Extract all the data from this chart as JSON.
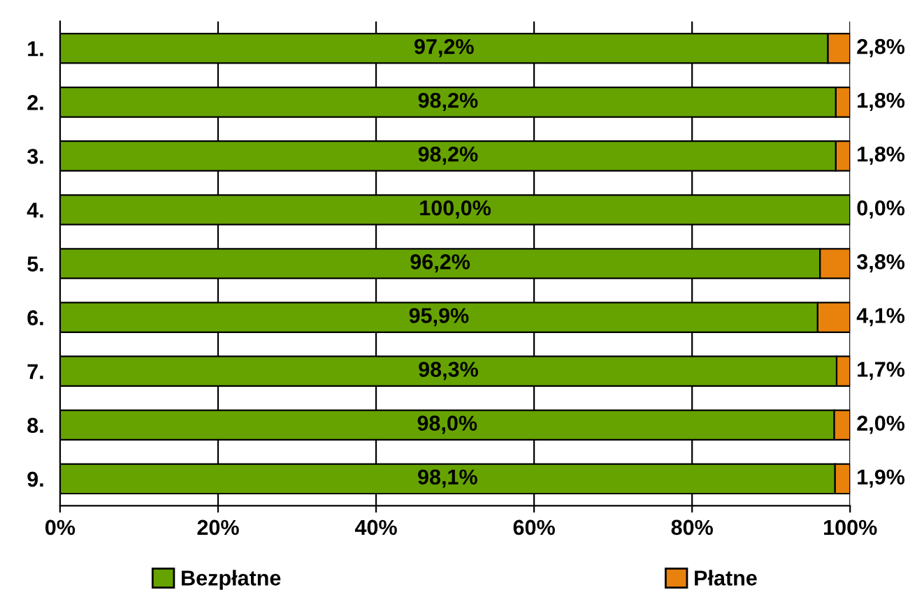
{
  "chart_data": {
    "type": "bar",
    "orientation": "horizontal",
    "stacked": true,
    "categories": [
      "1.",
      "2.",
      "3.",
      "4.",
      "5.",
      "6.",
      "7.",
      "8.",
      "9."
    ],
    "series": [
      {
        "name": "Bezpłatne",
        "color": "#66a300",
        "values": [
          97.2,
          98.2,
          98.2,
          100.0,
          96.2,
          95.9,
          98.3,
          98.0,
          98.1
        ],
        "value_labels": [
          "97,2%",
          "98,2%",
          "98,2%",
          "100,0%",
          "96,2%",
          "95,9%",
          "98,3%",
          "98,0%",
          "98,1%"
        ]
      },
      {
        "name": "Płatne",
        "color": "#e8820c",
        "values": [
          2.8,
          1.8,
          1.8,
          0.0,
          3.8,
          4.1,
          1.7,
          2.0,
          1.9
        ],
        "value_labels": [
          "2,8%",
          "1,8%",
          "1,8%",
          "0,0%",
          "3,8%",
          "4,1%",
          "1,7%",
          "2,0%",
          "1,9%"
        ]
      }
    ],
    "xlim": [
      0,
      100
    ],
    "xticks": [
      {
        "value": 0,
        "label": "0%"
      },
      {
        "value": 20,
        "label": "20%"
      },
      {
        "value": 40,
        "label": "40%"
      },
      {
        "value": 60,
        "label": "60%"
      },
      {
        "value": 80,
        "label": "80%"
      },
      {
        "value": 100,
        "label": "100%"
      }
    ],
    "grid": "x",
    "legend": "bottom"
  }
}
